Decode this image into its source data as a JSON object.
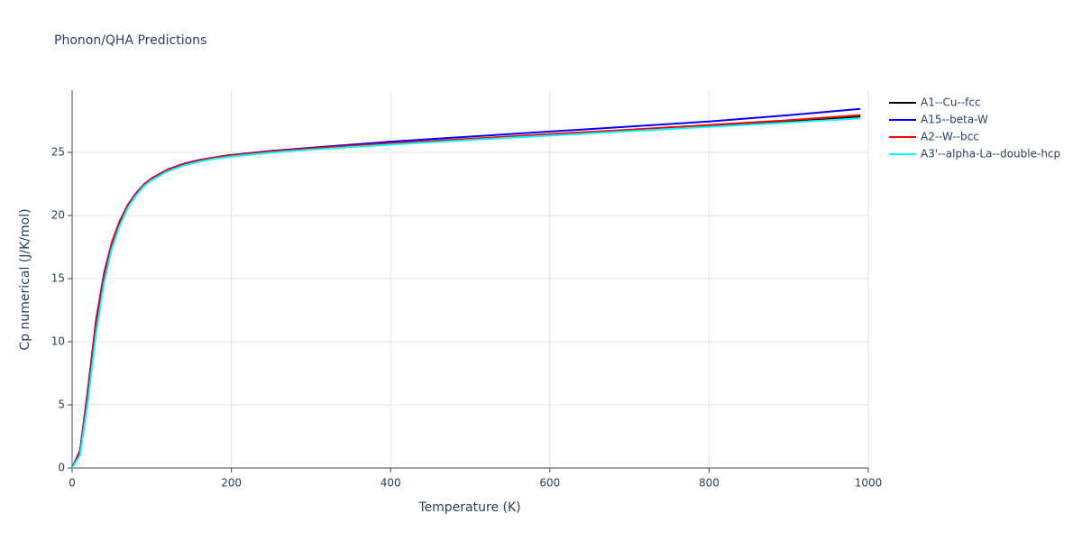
{
  "chart_data": {
    "type": "line",
    "title": "Phonon/QHA Predictions",
    "x_label": "Temperature (K)",
    "y_label": "Cp numerical (J/K/mol)",
    "x": [
      0,
      10,
      20,
      30,
      40,
      50,
      60,
      70,
      80,
      90,
      100,
      120,
      140,
      160,
      180,
      200,
      250,
      300,
      400,
      500,
      600,
      700,
      800,
      900,
      990
    ],
    "series": [
      {
        "name": "A1--Cu--fcc",
        "color": "#000000",
        "values": [
          0,
          1.3,
          6.0,
          11.4,
          15.2,
          17.8,
          19.5,
          20.8,
          21.7,
          22.4,
          22.9,
          23.6,
          24.05,
          24.35,
          24.58,
          24.75,
          25.05,
          25.3,
          25.7,
          26.05,
          26.4,
          26.75,
          27.1,
          27.45,
          27.85
        ]
      },
      {
        "name": "A15--beta-W",
        "color": "#0000ff",
        "values": [
          0,
          1.4,
          6.3,
          11.7,
          15.4,
          17.9,
          19.6,
          20.85,
          21.75,
          22.45,
          22.95,
          23.65,
          24.1,
          24.4,
          24.62,
          24.8,
          25.12,
          25.37,
          25.85,
          26.25,
          26.65,
          27.05,
          27.45,
          27.95,
          28.45
        ]
      },
      {
        "name": "A2--W--bcc",
        "color": "#ff0000",
        "values": [
          0,
          1.3,
          6.1,
          11.5,
          15.25,
          17.85,
          19.55,
          20.82,
          21.72,
          22.42,
          22.92,
          23.62,
          24.07,
          24.37,
          24.6,
          24.77,
          25.07,
          25.32,
          25.72,
          26.08,
          26.45,
          26.8,
          27.17,
          27.55,
          27.95
        ]
      },
      {
        "name": "A3'--alpha-La--double-hcp",
        "color": "#00ffff",
        "values": [
          0,
          1.0,
          5.3,
          10.6,
          14.6,
          17.4,
          19.2,
          20.6,
          21.55,
          22.3,
          22.8,
          23.5,
          23.95,
          24.27,
          24.5,
          24.67,
          24.98,
          25.22,
          25.62,
          25.98,
          26.33,
          26.68,
          27.02,
          27.37,
          27.7
        ]
      }
    ],
    "xlim": [
      0,
      1000
    ],
    "ylim": [
      0,
      29.93
    ],
    "xticks": [
      0,
      200,
      400,
      600,
      800,
      1000
    ],
    "yticks": [
      0,
      5,
      10,
      15,
      20,
      25
    ],
    "grid": true
  }
}
